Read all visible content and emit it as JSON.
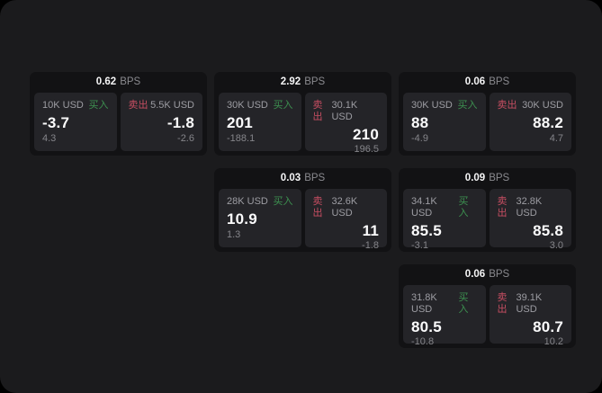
{
  "labels": {
    "bps_unit": "BPS",
    "buy": "买入",
    "sell": "卖出"
  },
  "colors": {
    "buy_green": "#3d9150",
    "sell_red": "#c74e62",
    "screen_bg": "#1b1b1d",
    "card_bg": "#121214",
    "panel_bg": "#242428"
  },
  "cards": [
    {
      "bps": "0.62",
      "buy": {
        "size": "10K USD",
        "price": "-3.7",
        "delta": "4.3"
      },
      "sell": {
        "size": "5.5K USD",
        "price": "-1.8",
        "delta": "-2.6"
      }
    },
    {
      "bps": "2.92",
      "buy": {
        "size": "30K USD",
        "price": "201",
        "delta": "-188.1"
      },
      "sell": {
        "size": "30.1K USD",
        "price": "210",
        "delta": "196.5"
      }
    },
    {
      "bps": "0.06",
      "buy": {
        "size": "30K USD",
        "price": "88",
        "delta": "-4.9"
      },
      "sell": {
        "size": "30K USD",
        "price": "88.2",
        "delta": "4.7"
      }
    },
    {
      "bps": "0.03",
      "buy": {
        "size": "28K USD",
        "price": "10.9",
        "delta": "1.3"
      },
      "sell": {
        "size": "32.6K USD",
        "price": "11",
        "delta": "-1.8"
      }
    },
    {
      "bps": "0.09",
      "buy": {
        "size": "34.1K USD",
        "price": "85.5",
        "delta": "-3.1"
      },
      "sell": {
        "size": "32.8K USD",
        "price": "85.8",
        "delta": "3.0"
      }
    },
    {
      "bps": "0.06",
      "buy": {
        "size": "31.8K USD",
        "price": "80.5",
        "delta": "-10.8"
      },
      "sell": {
        "size": "39.1K USD",
        "price": "80.7",
        "delta": "10.2"
      }
    }
  ]
}
